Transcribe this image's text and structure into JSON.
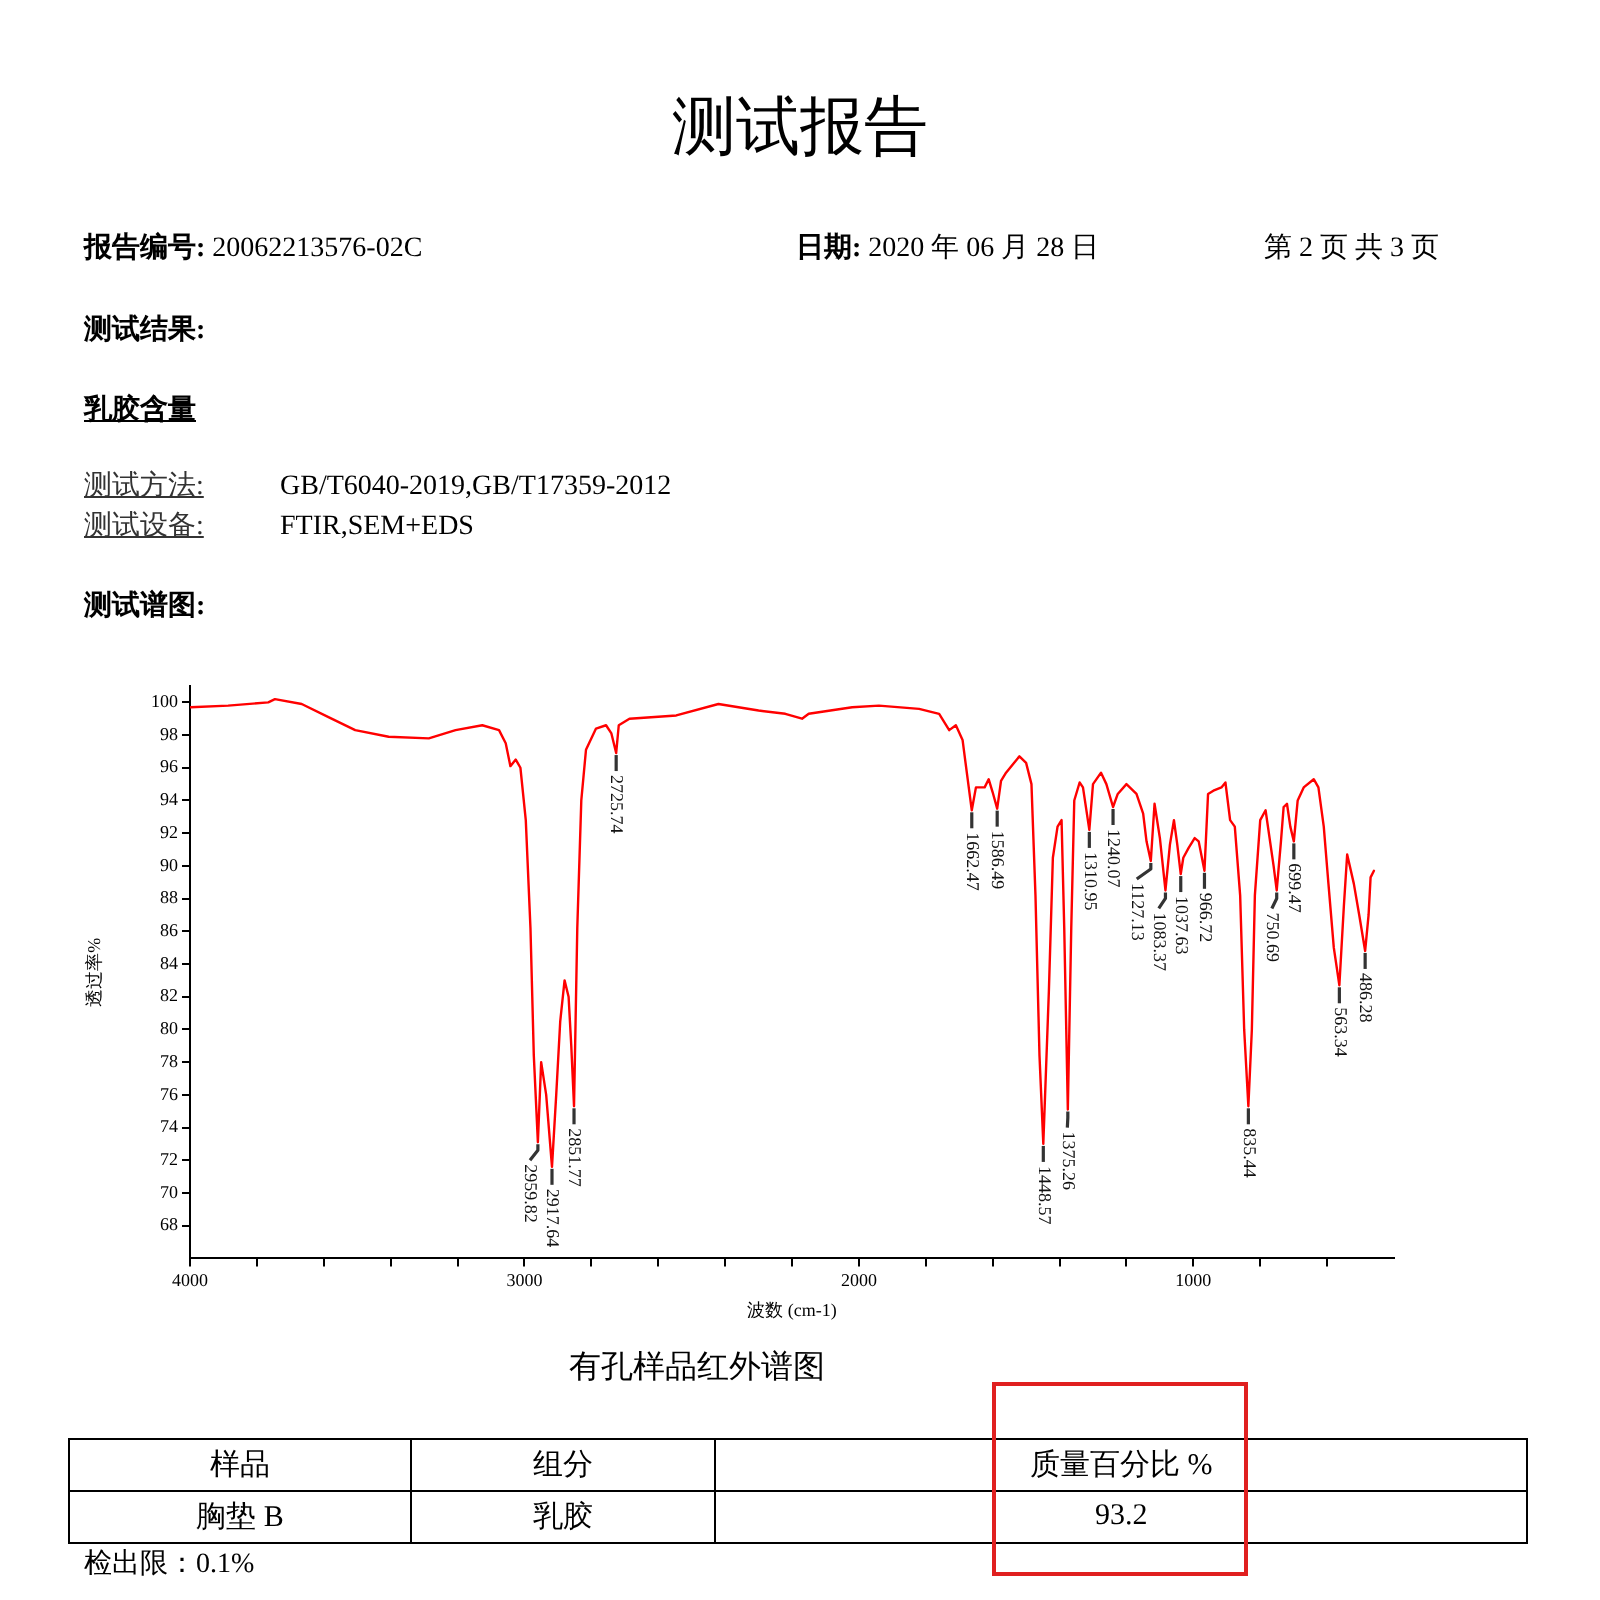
{
  "chart_data": {
    "type": "line",
    "title": "有孔样品红外谱图",
    "xlabel": "波数 (cm-1)",
    "ylabel": "透过率%",
    "color": "#ff0000",
    "xlim": [
      4000,
      400
    ],
    "ylim": [
      66,
      101
    ],
    "xticks": [
      4000,
      {
        "value": 3800,
        "label": null
      },
      {
        "value": 3600,
        "label": null
      },
      {
        "value": 3400,
        "label": null
      },
      {
        "value": 3200,
        "label": null
      },
      3000,
      {
        "value": 2800,
        "label": null
      },
      {
        "value": 2600,
        "label": null
      },
      {
        "value": 2400,
        "label": null
      },
      {
        "value": 2200,
        "label": null
      },
      2000,
      {
        "value": 1800,
        "label": null
      },
      {
        "value": 1600,
        "label": null
      },
      {
        "value": 1400,
        "label": null
      },
      {
        "value": 1200,
        "label": null
      },
      1000,
      {
        "value": 800,
        "label": null
      },
      {
        "value": 600,
        "label": null
      }
    ],
    "yticks": [
      68,
      70,
      72,
      74,
      76,
      78,
      80,
      82,
      84,
      86,
      88,
      90,
      92,
      94,
      96,
      98,
      100
    ],
    "x": [
      3998,
      3886,
      3766,
      3746,
      3666,
      3586,
      3506,
      3406,
      3286,
      3206,
      3126,
      3076,
      3056,
      3042,
      3026,
      3012,
      2996,
      2982,
      2972,
      2959.82,
      2950,
      2935,
      2917.64,
      2905,
      2893,
      2880,
      2868,
      2860,
      2851.77,
      2842,
      2830,
      2816,
      2786,
      2756,
      2740,
      2725.74,
      2718,
      2686,
      2546,
      2420,
      2300,
      2220,
      2170,
      2150,
      2020,
      1940,
      1820,
      1760,
      1730,
      1710,
      1690,
      1676,
      1662.47,
      1650,
      1624,
      1612,
      1600,
      1586.49,
      1575,
      1560,
      1520,
      1500,
      1484,
      1472,
      1460,
      1448.57,
      1432,
      1420,
      1406,
      1394,
      1386,
      1375.26,
      1365,
      1356,
      1340,
      1330,
      1310.95,
      1300,
      1276,
      1260,
      1240.07,
      1226,
      1200,
      1170,
      1150,
      1140,
      1127.13,
      1116,
      1100,
      1083.37,
      1070,
      1058,
      1048,
      1037.63,
      1030,
      1014,
      996,
      984,
      966.72,
      956,
      940,
      916,
      904,
      890,
      876,
      860,
      848,
      835.44,
      825,
      816,
      800,
      784,
      772,
      760,
      750.69,
      738,
      730,
      720,
      710,
      699.47,
      688,
      670,
      640,
      626,
      610,
      596,
      580,
      563.34,
      550,
      540,
      520,
      504,
      486.28,
      476,
      470,
      460
    ],
    "values": [
      99.7,
      99.8,
      100.0,
      100.2,
      99.9,
      99.1,
      98.3,
      97.9,
      97.8,
      98.3,
      98.6,
      98.3,
      97.5,
      96.1,
      96.5,
      96.0,
      92.8,
      86.2,
      78.4,
      73.1,
      78.0,
      76.0,
      71.6,
      76.0,
      80.5,
      83.0,
      82.0,
      79.0,
      75.3,
      86.2,
      94.0,
      97.1,
      98.4,
      98.6,
      98.1,
      96.9,
      98.6,
      99.0,
      99.2,
      99.9,
      99.5,
      99.3,
      99.0,
      99.3,
      99.7,
      99.8,
      99.6,
      99.3,
      98.3,
      98.6,
      97.7,
      95.5,
      93.4,
      94.8,
      94.8,
      95.3,
      94.5,
      93.5,
      95.2,
      95.7,
      96.7,
      96.3,
      95.0,
      88.2,
      78.4,
      73.0,
      82.3,
      90.5,
      92.4,
      92.8,
      86.2,
      75.1,
      86.2,
      94.0,
      95.1,
      94.8,
      92.2,
      95.0,
      95.7,
      95.0,
      93.6,
      94.4,
      95.0,
      94.4,
      93.2,
      91.5,
      90.3,
      93.8,
      91.7,
      88.5,
      91.3,
      92.8,
      91.3,
      89.5,
      90.5,
      91.1,
      91.7,
      91.5,
      89.7,
      94.4,
      94.6,
      94.8,
      95.1,
      92.8,
      92.4,
      88.2,
      80.0,
      75.3,
      80.0,
      88.2,
      92.8,
      93.4,
      91.7,
      90.0,
      88.5,
      91.5,
      93.6,
      93.8,
      92.4,
      91.5,
      94.0,
      94.8,
      95.3,
      94.8,
      92.4,
      88.9,
      85.0,
      82.7,
      87.5,
      90.7,
      88.9,
      87.0,
      84.8,
      87.0,
      89.3,
      89.7
    ],
    "annotations": [
      "测试报告",
      "报告编号: 20062213576-02C",
      "日期: 2020 年 06 月 28 日",
      "第 2 页 共 3 页",
      "测试结果:",
      "乳胶含量",
      "测试方法:",
      "GB/T6040-2019,GB/T17359-2012",
      "测试设备:",
      "FTIR,SEM+EDS",
      "测试谱图:",
      "样品",
      "组分",
      "质量百分比 %",
      "胸垫 B",
      "乳胶",
      "93.2",
      "检出限：0.1%",
      {
        "text": "2959.82",
        "x": 2959.82,
        "y": 73.1
      },
      {
        "text": "2917.64",
        "x": 2917.64,
        "y": 71.6
      },
      {
        "text": "2851.77",
        "x": 2851.77,
        "y": 75.3
      },
      {
        "text": "2725.74",
        "x": 2725.74,
        "y": 96.9
      },
      {
        "text": "1662.47",
        "x": 1662.47,
        "y": 93.4
      },
      {
        "text": "1586.49",
        "x": 1586.49,
        "y": 93.5
      },
      {
        "text": "1448.57",
        "x": 1448.57,
        "y": 73.0
      },
      {
        "text": "1375.26",
        "x": 1375.26,
        "y": 75.1
      },
      {
        "text": "1310.95",
        "x": 1310.95,
        "y": 92.2
      },
      {
        "text": "1240.07",
        "x": 1240.07,
        "y": 93.6
      },
      {
        "text": "1127.13",
        "x": 1127.13,
        "y": 90.3
      },
      {
        "text": "1083.37",
        "x": 1083.37,
        "y": 88.5
      },
      {
        "text": "1037.63",
        "x": 1037.63,
        "y": 89.5
      },
      {
        "text": "966.72",
        "x": 966.72,
        "y": 89.7
      },
      {
        "text": "835.44",
        "x": 835.44,
        "y": 75.3
      },
      {
        "text": "750.69",
        "x": 750.69,
        "y": 88.5
      },
      {
        "text": "699.47",
        "x": 699.47,
        "y": 91.5
      },
      {
        "text": "563.34",
        "x": 563.34,
        "y": 82.7
      },
      {
        "text": "486.28",
        "x": 486.28,
        "y": 84.8
      }
    ]
  }
}
